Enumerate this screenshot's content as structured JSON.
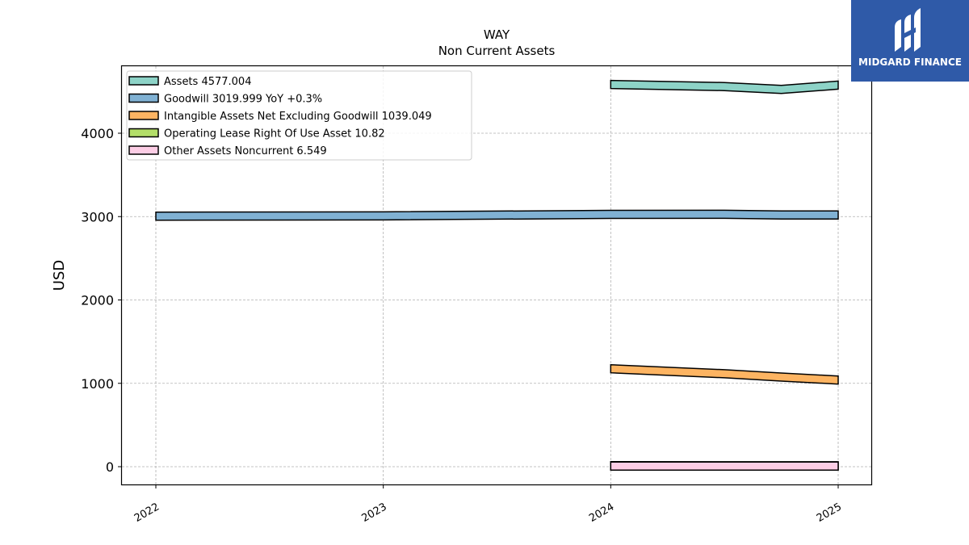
{
  "chart_data": {
    "type": "area",
    "title": "WAY",
    "subtitle": "Non Current  Assets",
    "xlabel": "",
    "ylabel": "USD",
    "x_ticks": [
      "2022",
      "2023",
      "2024",
      "2025"
    ],
    "x_range": [
      2021.85,
      2025.15
    ],
    "ylim": [
      -220,
      4830
    ],
    "y_ticks": [
      0,
      1000,
      2000,
      3000,
      4000
    ],
    "grid": true,
    "legend_position": "top-left",
    "series": [
      {
        "name": "Assets",
        "legend": "Assets  4577.004",
        "color": "#8dd3c7",
        "x": [
          2024.0,
          2024.5,
          2024.75,
          2025.0
        ],
        "y": [
          4585,
          4560,
          4525,
          4577
        ]
      },
      {
        "name": "Goodwill",
        "legend": "Goodwill  3019.999 YoY +0.3%",
        "color": "#80b1d3",
        "x": [
          2022.0,
          2023.0,
          2024.0,
          2024.5,
          2024.75,
          2025.0
        ],
        "y": [
          3005,
          3008,
          3027,
          3028,
          3019,
          3020
        ]
      },
      {
        "name": "Intangible Assets Net Excluding Goodwill",
        "legend": "Intangible Assets Net Excluding Goodwill  1039.049",
        "color": "#fdb462",
        "x": [
          2024.0,
          2024.5,
          2024.75,
          2025.0
        ],
        "y": [
          1175,
          1115,
          1075,
          1039
        ]
      },
      {
        "name": "Operating Lease Right Of Use Asset",
        "legend": "Operating Lease Right Of Use Asset  10.82",
        "color": "#b3de69",
        "x": [
          2024.0,
          2025.0
        ],
        "y": [
          12,
          10.82
        ]
      },
      {
        "name": "Other Assets Noncurrent",
        "legend": "Other Assets Noncurrent  6.549",
        "color": "#fccde5",
        "x": [
          2024.0,
          2025.0
        ],
        "y": [
          8,
          6.549
        ]
      }
    ]
  },
  "logo": {
    "text": "MIDGARD FINANCE",
    "color": "#2f5aa8"
  }
}
